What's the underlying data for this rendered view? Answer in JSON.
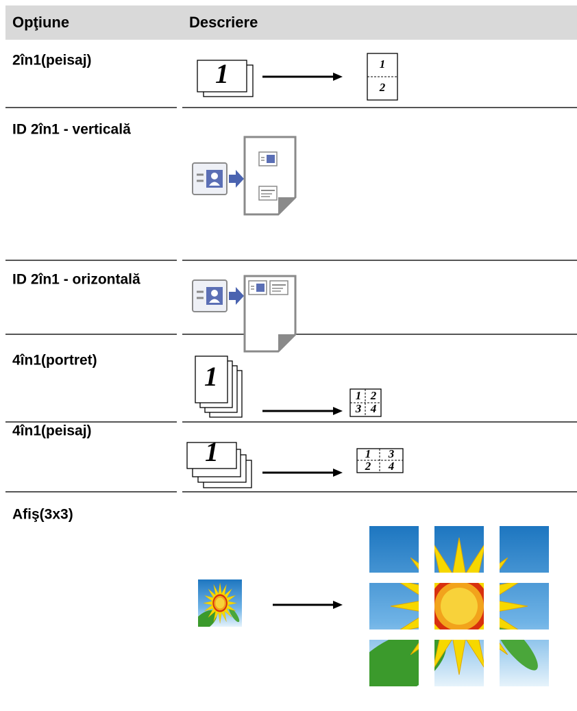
{
  "table": {
    "header": [
      "Opţiune",
      "Descriere"
    ],
    "rows": [
      {
        "option": "2în1(peisaj)",
        "source": "1",
        "result": [
          "1",
          "2"
        ]
      },
      {
        "option": "ID 2în1 - verticală"
      },
      {
        "option": "ID 2în1 - orizontală"
      },
      {
        "option": "4în1(portret)",
        "source": "1",
        "result": [
          "1",
          "2",
          "3",
          "4"
        ]
      },
      {
        "option": "4în1(peisaj)",
        "source": "1",
        "result": [
          "1",
          "3",
          "2",
          "4"
        ]
      },
      {
        "option": "Afiş(3x3)"
      }
    ]
  }
}
